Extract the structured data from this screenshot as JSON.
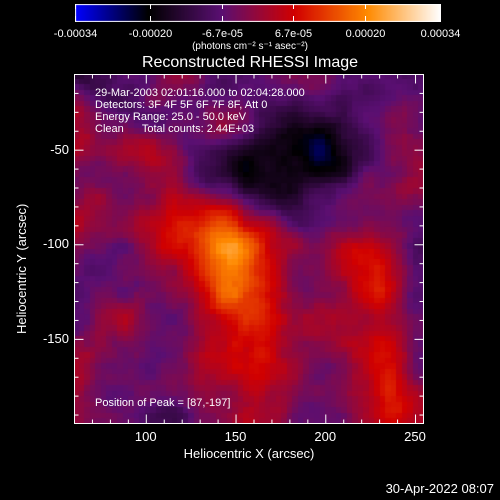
{
  "colorbar": {
    "tick_labels": [
      "-0.00034",
      "-0.00020",
      "-6.7e-05",
      "6.7e-05",
      "0.00020",
      "0.00034"
    ],
    "ticks": [
      -0.00034,
      -0.0002,
      -6.7e-05,
      6.7e-05,
      0.0002,
      0.00034
    ],
    "units_label": "(photons cm⁻² s⁻¹ asec⁻²)",
    "colors": [
      "#0000ff",
      "#000000",
      "#5a0f72",
      "#d10000",
      "#ff8a00",
      "#ffffff"
    ]
  },
  "chart_data": {
    "type": "heatmap",
    "title": "Reconstructed RHESSI Image",
    "xlabel": "Heliocentric X (arcsec)",
    "ylabel": "Heliocentric Y (arcsec)",
    "xlim": [
      60,
      255
    ],
    "ylim": [
      -195,
      -10
    ],
    "x_ticks": [
      100,
      150,
      200,
      250
    ],
    "y_ticks": [
      -50,
      -100,
      -150
    ],
    "vmin": -0.00034,
    "vmax": 0.00034,
    "annotations": [
      "29-Mar-2003 02:01:16.000 to 02:04:28.000",
      "Detectors: 3F 4F 5F 6F 7F 8F, Att 0",
      "Energy Range: 25.0 - 50.0 keV",
      "Clean      Total counts: 2.44E+03"
    ],
    "peak_text": "Position of Peak = [87,-197]"
  },
  "footer": {
    "timestamp": "30-Apr-2022 08:07"
  }
}
